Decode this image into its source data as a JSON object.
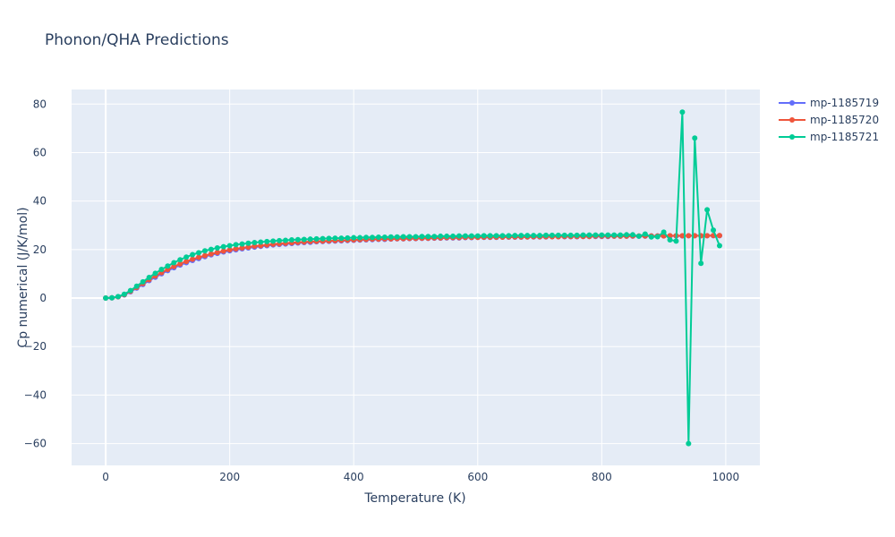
{
  "chart_data": {
    "type": "line",
    "title": "Phonon/QHA Predictions",
    "xlabel": "Temperature (K)",
    "ylabel": "Cp numerical (J/K/mol)",
    "xlim": [
      -55,
      1055
    ],
    "ylim": [
      -69,
      86
    ],
    "xticks": [
      0,
      200,
      400,
      600,
      800,
      1000
    ],
    "xtick_labels": [
      "0",
      "200",
      "400",
      "600",
      "800",
      "1000"
    ],
    "yticks": [
      -60,
      -40,
      -20,
      0,
      20,
      40,
      60,
      80
    ],
    "ytick_labels": [
      "−60",
      "−40",
      "−20",
      "0",
      "20",
      "40",
      "60",
      "80"
    ],
    "grid": true,
    "legend_position": "top-right",
    "x": [
      0,
      10,
      20,
      30,
      40,
      50,
      60,
      70,
      80,
      90,
      100,
      110,
      120,
      130,
      140,
      150,
      160,
      170,
      180,
      190,
      200,
      210,
      220,
      230,
      240,
      250,
      260,
      270,
      280,
      290,
      300,
      310,
      320,
      330,
      340,
      350,
      360,
      370,
      380,
      390,
      400,
      410,
      420,
      430,
      440,
      450,
      460,
      470,
      480,
      490,
      500,
      510,
      520,
      530,
      540,
      550,
      560,
      570,
      580,
      590,
      600,
      610,
      620,
      630,
      640,
      650,
      660,
      670,
      680,
      690,
      700,
      710,
      720,
      730,
      740,
      750,
      760,
      770,
      780,
      790,
      800,
      810,
      820,
      830,
      840,
      850,
      860,
      870,
      880,
      890,
      900,
      910,
      920,
      930,
      940,
      950,
      960,
      970,
      980,
      990
    ],
    "series": [
      {
        "name": "mp-1185719",
        "color": "#636efa",
        "values": [
          0,
          0.1,
          0.5,
          1.3,
          2.6,
          4.1,
          5.6,
          7.2,
          8.6,
          10,
          11.3,
          12.5,
          13.6,
          14.6,
          15.5,
          16.3,
          17.1,
          17.8,
          18.4,
          19,
          19.5,
          19.9,
          20.3,
          20.7,
          21,
          21.3,
          21.6,
          21.9,
          22.1,
          22.3,
          22.5,
          22.7,
          22.9,
          23,
          23.2,
          23.3,
          23.4,
          23.5,
          23.6,
          23.7,
          23.8,
          23.9,
          24,
          24.1,
          24.2,
          24.2,
          24.3,
          24.4,
          24.4,
          24.5,
          24.5,
          24.6,
          24.6,
          24.7,
          24.7,
          24.8,
          24.8,
          24.8,
          24.9,
          24.9,
          25,
          25,
          25,
          25,
          25.1,
          25.1,
          25.1,
          25.1,
          25.2,
          25.2,
          25.2,
          25.2,
          25.3,
          25.3,
          25.3,
          25.3,
          25.3,
          25.4,
          25.4,
          25.4,
          25.4,
          25.4,
          25.5,
          25.5,
          25.5,
          25.5,
          25.5,
          25.5,
          25.6,
          25.6,
          25.6,
          25.6,
          25.6,
          25.6,
          25.7,
          25.7,
          25.7,
          25.7,
          25.7,
          25.7
        ]
      },
      {
        "name": "mp-1185720",
        "color": "#ef553b",
        "values": [
          0,
          0.1,
          0.5,
          1.4,
          2.8,
          4.4,
          6,
          7.6,
          9.1,
          10.5,
          11.8,
          13,
          14.1,
          15.1,
          16,
          16.8,
          17.5,
          18.2,
          18.8,
          19.4,
          19.9,
          20.3,
          20.7,
          21,
          21.4,
          21.6,
          21.9,
          22.2,
          22.4,
          22.6,
          22.8,
          23,
          23.1,
          23.3,
          23.4,
          23.5,
          23.6,
          23.7,
          23.8,
          23.9,
          24,
          24.1,
          24.2,
          24.3,
          24.3,
          24.4,
          24.4,
          24.5,
          24.5,
          24.6,
          24.6,
          24.7,
          24.7,
          24.8,
          24.8,
          24.9,
          24.9,
          24.9,
          25,
          25,
          25,
          25.1,
          25.1,
          25.1,
          25.1,
          25.2,
          25.2,
          25.2,
          25.2,
          25.3,
          25.3,
          25.3,
          25.3,
          25.3,
          25.4,
          25.4,
          25.4,
          25.4,
          25.4,
          25.5,
          25.5,
          25.5,
          25.5,
          25.5,
          25.5,
          25.6,
          25.6,
          25.6,
          25.6,
          25.6,
          25.6,
          25.7,
          25.7,
          25.7,
          25.7,
          25.7,
          25.7,
          25.7,
          25.8,
          25.8
        ]
      },
      {
        "name": "mp-1185721",
        "color": "#00cc96",
        "values": [
          0,
          0.1,
          0.6,
          1.6,
          3.1,
          4.9,
          6.7,
          8.5,
          10.2,
          11.8,
          13.2,
          14.6,
          15.8,
          16.9,
          17.9,
          18.7,
          19.5,
          20.1,
          20.7,
          21.2,
          21.6,
          22,
          22.3,
          22.6,
          22.9,
          23.1,
          23.3,
          23.5,
          23.7,
          23.8,
          24,
          24.1,
          24.2,
          24.3,
          24.4,
          24.5,
          24.6,
          24.7,
          24.7,
          24.8,
          24.9,
          24.9,
          25,
          25,
          25.1,
          25.1,
          25.2,
          25.2,
          25.3,
          25.3,
          25.3,
          25.4,
          25.4,
          25.4,
          25.5,
          25.5,
          25.5,
          25.6,
          25.6,
          25.6,
          25.6,
          25.7,
          25.7,
          25.7,
          25.7,
          25.7,
          25.8,
          25.8,
          25.8,
          25.8,
          25.8,
          25.9,
          25.9,
          25.9,
          25.9,
          25.9,
          25.9,
          26,
          26,
          26,
          26,
          26,
          26,
          26,
          26.1,
          26.1,
          25.5,
          26.4,
          25.2,
          25.3,
          27.2,
          24,
          23.5,
          76.7,
          -60,
          66,
          14.3,
          36.4,
          28,
          21.6
        ]
      }
    ]
  }
}
